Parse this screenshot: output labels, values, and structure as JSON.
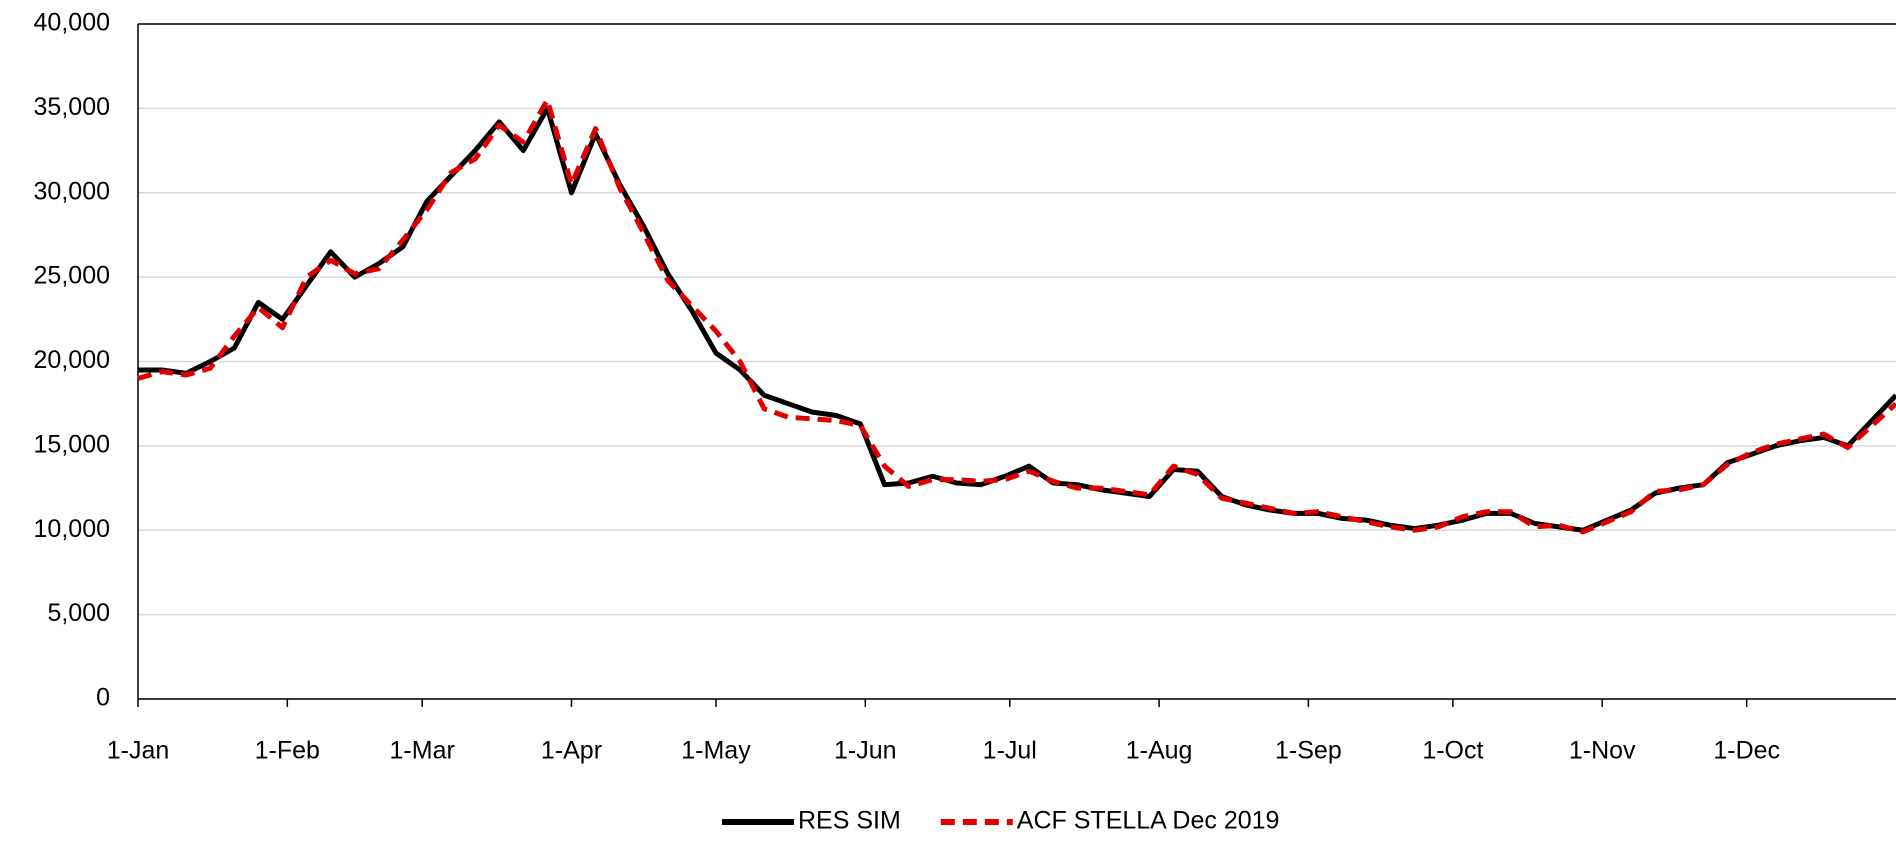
{
  "chart_data": {
    "type": "line",
    "x": [
      0,
      5,
      10,
      15,
      20,
      25,
      30,
      35,
      40,
      45,
      50,
      55,
      60,
      65,
      70,
      75,
      80,
      85,
      90,
      95,
      100,
      105,
      110,
      115,
      120,
      125,
      130,
      135,
      140,
      145,
      150,
      155,
      160,
      165,
      170,
      175,
      180,
      185,
      190,
      195,
      200,
      205,
      210,
      215,
      220,
      225,
      230,
      235,
      240,
      245,
      250,
      255,
      260,
      265,
      270,
      275,
      280,
      285,
      290,
      295,
      300,
      305,
      310,
      315,
      320,
      325,
      330,
      335,
      340,
      345,
      350,
      355,
      360,
      365
    ],
    "series": [
      {
        "name": "RES SIM",
        "color": "#000000",
        "dashed": false,
        "values": [
          19500,
          19500,
          19300,
          20000,
          20800,
          23500,
          22500,
          24500,
          26500,
          25000,
          25800,
          26800,
          29500,
          31000,
          32500,
          34200,
          32500,
          35000,
          30000,
          33500,
          30500,
          28000,
          25200,
          23000,
          20500,
          19500,
          18000,
          17500,
          17000,
          16800,
          16300,
          12700,
          12800,
          13200,
          12800,
          12700,
          13200,
          13800,
          12800,
          12700,
          12400,
          12200,
          12000,
          13600,
          13500,
          12000,
          11500,
          11200,
          11000,
          11000,
          10700,
          10600,
          10300,
          10100,
          10300,
          10600,
          11000,
          11000,
          10400,
          10200,
          10000,
          10600,
          11200,
          12200,
          12500,
          12700,
          14000,
          14500,
          15000,
          15300,
          15500,
          15000,
          16500,
          18000
        ]
      },
      {
        "name": "ACF STELLA Dec 2019",
        "color": "#e00000",
        "dashed": true,
        "values": [
          19000,
          19400,
          19200,
          19600,
          21500,
          23200,
          22000,
          25000,
          26000,
          25200,
          25500,
          27200,
          29000,
          31200,
          32000,
          34000,
          33000,
          35500,
          30500,
          33800,
          30300,
          27600,
          24800,
          23300,
          21800,
          20000,
          17200,
          16700,
          16600,
          16500,
          16200,
          13800,
          12600,
          13000,
          13000,
          12900,
          13000,
          13500,
          12900,
          12500,
          12500,
          12300,
          12100,
          13800,
          13300,
          11900,
          11600,
          11300,
          11000,
          11100,
          10800,
          10500,
          10200,
          10000,
          10200,
          10800,
          11100,
          11100,
          10200,
          10300,
          9900,
          10500,
          11100,
          12300,
          12400,
          12700,
          13900,
          14600,
          15100,
          15400,
          15700,
          14900,
          16200,
          17500
        ]
      }
    ],
    "xlim": [
      0,
      365
    ],
    "xticks": [
      {
        "value": 0,
        "label": "1-Jan"
      },
      {
        "value": 31,
        "label": "1-Feb"
      },
      {
        "value": 59,
        "label": "1-Mar"
      },
      {
        "value": 90,
        "label": "1-Apr"
      },
      {
        "value": 120,
        "label": "1-May"
      },
      {
        "value": 151,
        "label": "1-Jun"
      },
      {
        "value": 181,
        "label": "1-Jul"
      },
      {
        "value": 212,
        "label": "1-Aug"
      },
      {
        "value": 243,
        "label": "1-Sep"
      },
      {
        "value": 273,
        "label": "1-Oct"
      },
      {
        "value": 304,
        "label": "1-Nov"
      },
      {
        "value": 334,
        "label": "1-Dec"
      }
    ],
    "ylim": [
      0,
      40000
    ],
    "yticks": [
      0,
      {
        "value": 5000,
        "label": "5,000"
      },
      {
        "value": 10000,
        "label": "10,000"
      },
      {
        "value": 15000,
        "label": "15,000"
      },
      {
        "value": 20000,
        "label": "20,000"
      },
      {
        "value": 25000,
        "label": "25,000"
      },
      {
        "value": 30000,
        "label": "30,000"
      },
      {
        "value": 35000,
        "label": "35,000"
      },
      {
        "value": 40000,
        "label": "40,000"
      }
    ],
    "grid": true,
    "legend": "bottom"
  }
}
